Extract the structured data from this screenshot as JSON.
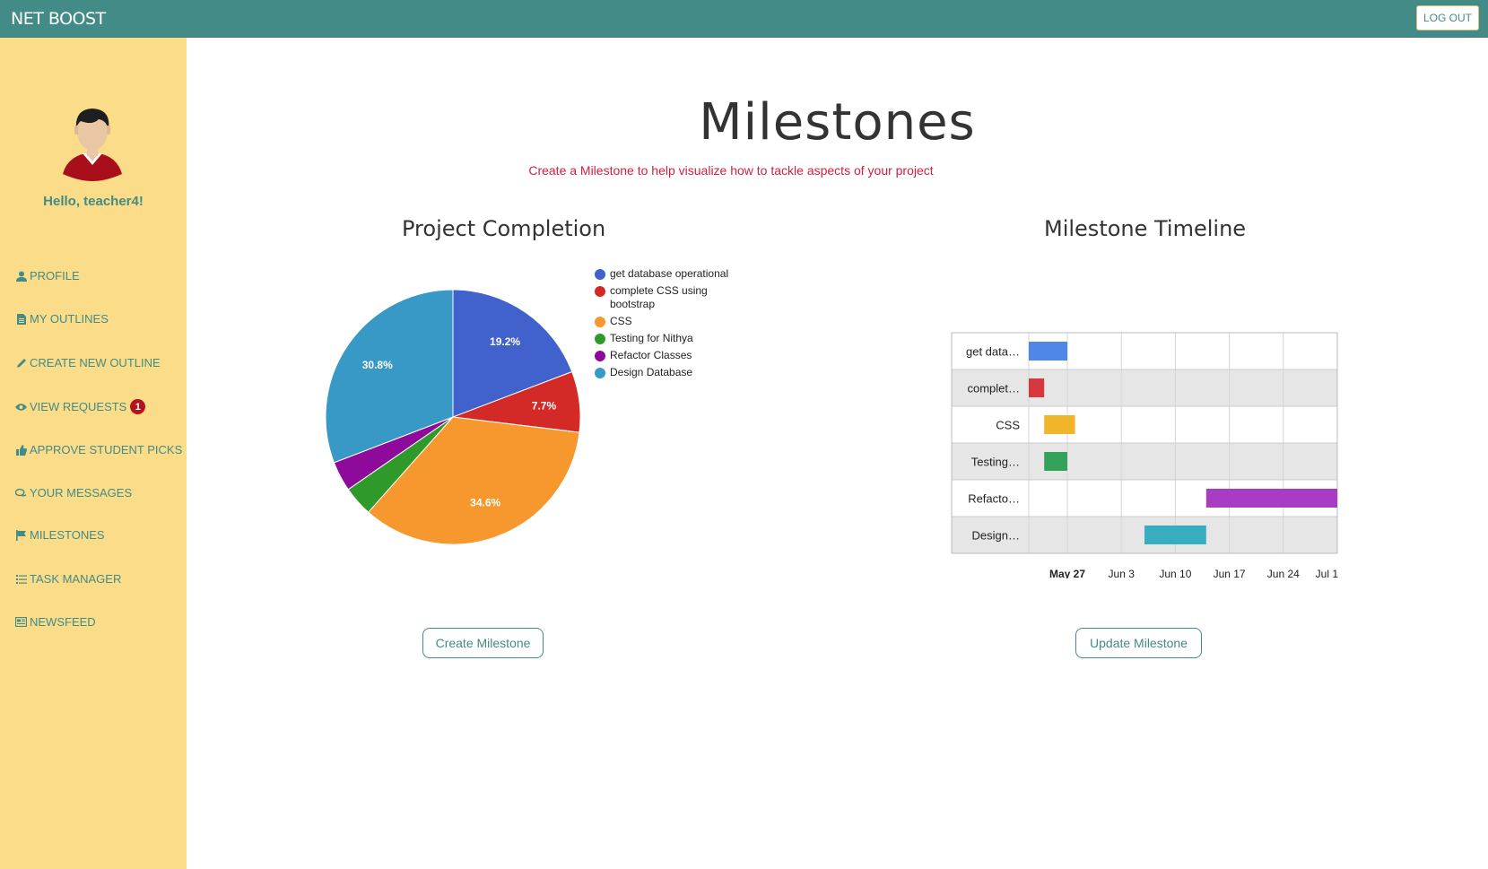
{
  "header": {
    "brand": "NET BOOST",
    "logout_label": "LOG OUT"
  },
  "sidebar": {
    "greeting": "Hello, teacher4!",
    "items": [
      {
        "label": "PROFILE",
        "icon": "user-icon"
      },
      {
        "label": "MY OUTLINES",
        "icon": "document-icon"
      },
      {
        "label": "CREATE NEW OUTLINE",
        "icon": "pencil-icon"
      },
      {
        "label": "VIEW REQUESTS",
        "icon": "eye-icon",
        "badge": "1"
      },
      {
        "label": "APPROVE STUDENT PICKS",
        "icon": "thumbs-up-icon"
      },
      {
        "label": "YOUR MESSAGES",
        "icon": "chat-icon"
      },
      {
        "label": "MILESTONES",
        "icon": "flag-icon"
      },
      {
        "label": "TASK MANAGER",
        "icon": "task-list-icon"
      },
      {
        "label": "NEWSFEED",
        "icon": "newspaper-icon"
      }
    ]
  },
  "page": {
    "title": "Milestones",
    "subtitle": "Create a Milestone to help visualize how to tackle aspects of your project"
  },
  "buttons": {
    "create": "Create Milestone",
    "update": "Update Milestone"
  },
  "colors": {
    "header": "#438b86",
    "sidebar": "#fbdc88",
    "accent": "#438b86",
    "subtitle": "#d11f3f",
    "badge": "#b3121e"
  },
  "chart_data": [
    {
      "type": "pie",
      "title": "Project Completion",
      "legend_position": "right",
      "slices": [
        {
          "label": "get database operational",
          "value": 19.2,
          "color": "#4161cd",
          "data_label": "19.2%"
        },
        {
          "label": "complete CSS using bootstrap",
          "value": 7.7,
          "color": "#d42a27",
          "data_label": "7.7%"
        },
        {
          "label": "CSS",
          "value": 34.6,
          "color": "#f6982e",
          "data_label": "34.6%"
        },
        {
          "label": "Testing for Nithya",
          "value": 3.8,
          "color": "#2f9a2a",
          "data_label": ""
        },
        {
          "label": "Refactor Classes",
          "value": 3.8,
          "color": "#8e0a9b",
          "data_label": ""
        },
        {
          "label": "Design Database",
          "value": 30.8,
          "color": "#3899c6",
          "data_label": "30.8%"
        }
      ]
    },
    {
      "type": "timeline",
      "title": "Milestone Timeline",
      "x_axis": {
        "ticks": [
          "May 27",
          "Jun 3",
          "Jun 10",
          "Jun 17",
          "Jun 24",
          "Jul 1"
        ],
        "range_days": [
          -5,
          35
        ]
      },
      "rows": [
        {
          "label": "get data…",
          "start": -5,
          "end": 0,
          "color": "#4f87e9"
        },
        {
          "label": "complet…",
          "start": -5,
          "end": -3,
          "color": "#d7373f"
        },
        {
          "label": "CSS",
          "start": -3,
          "end": 1,
          "color": "#f0b529"
        },
        {
          "label": "Testing…",
          "start": -3,
          "end": 0,
          "color": "#33a25a"
        },
        {
          "label": "Refacto…",
          "start": 18,
          "end": 35,
          "color": "#a83cc2"
        },
        {
          "label": "Design…",
          "start": 10,
          "end": 18,
          "color": "#39adc0"
        }
      ]
    }
  ]
}
